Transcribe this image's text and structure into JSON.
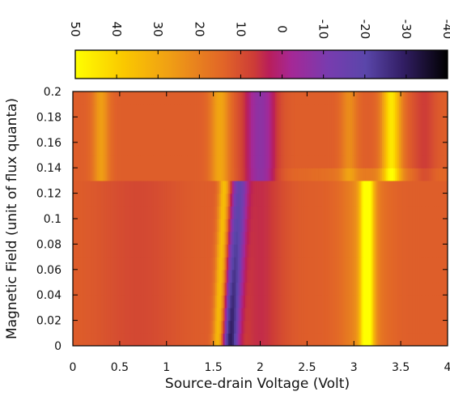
{
  "chart_data": {
    "type": "heatmap",
    "xlabel": "Source-drain Voltage (Volt)",
    "ylabel": "Magnetic Field (unit of flux quanta)",
    "xlim": [
      0,
      4
    ],
    "ylim": [
      0,
      0.2
    ],
    "x_ticks": [
      0,
      0.5,
      1,
      1.5,
      2,
      2.5,
      3,
      3.5,
      4
    ],
    "x_tick_labels": [
      "0",
      "0.5",
      "1",
      "1.5",
      "2",
      "2.5",
      "3",
      "3.5",
      "4"
    ],
    "y_ticks": [
      0,
      0.02,
      0.04,
      0.06,
      0.08,
      0.1,
      0.12,
      0.14,
      0.16,
      0.18,
      0.2
    ],
    "y_tick_labels": [
      "0",
      "0.02",
      "0.04",
      "0.06",
      "0.08",
      "0.1",
      "0.12",
      "0.14",
      "0.16",
      "0.18",
      "0.2"
    ],
    "colorbar": {
      "range": [
        50,
        -40
      ],
      "ticks": [
        50,
        40,
        30,
        20,
        10,
        0,
        -10,
        -20,
        -30,
        -40
      ],
      "tick_labels": [
        "50",
        "40",
        "30",
        "20",
        "10",
        "0",
        "-10",
        "-20",
        "-30",
        "-40"
      ],
      "colormap": "gnuplot-pm3d (yellow to black)"
    },
    "grid": false,
    "features": [
      {
        "kind": "peak",
        "x_center_bottom": 1.55,
        "x_center_top": 1.62,
        "y_range": [
          0,
          0.13
        ],
        "value": 35
      },
      {
        "kind": "dip",
        "x_center_bottom": 1.65,
        "x_center_top": 1.78,
        "y_range": [
          0,
          0.13
        ],
        "value": -30
      },
      {
        "kind": "peak",
        "x_center": 3.15,
        "y_range": [
          0,
          0.13
        ],
        "value": 50
      },
      {
        "kind": "peak",
        "x_center": 3.4,
        "y_range": [
          0.14,
          0.2
        ],
        "value": 45
      },
      {
        "kind": "peak",
        "x_center": 1.55,
        "y_range": [
          0.14,
          0.2
        ],
        "value": 30
      },
      {
        "kind": "dip",
        "x_center": 2.0,
        "y_range": [
          0.14,
          0.2
        ],
        "value": -10
      },
      {
        "kind": "peak",
        "x_center": 0.3,
        "y_range": [
          0.14,
          0.2
        ],
        "value": 22
      },
      {
        "kind": "peak",
        "x_center": 2.95,
        "y_range": [
          0.14,
          0.2
        ],
        "value": 20
      }
    ]
  }
}
